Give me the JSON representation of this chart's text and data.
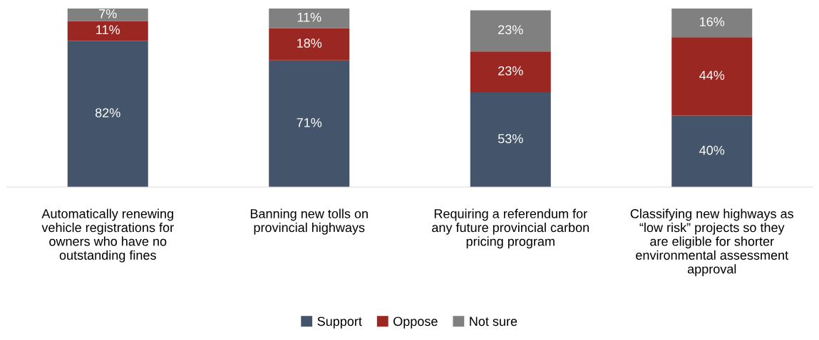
{
  "chart_data": {
    "type": "bar",
    "stacked": true,
    "categories": [
      "Automatically renewing vehicle registrations for owners who have no outstanding fines",
      "Banning new tolls on provincial highways",
      "Requiring a referendum for any future provincial carbon pricing program",
      "Classifying new highways as “low risk” projects so they are eligible for shorter environmental assessment approval"
    ],
    "series": [
      {
        "name": "Support",
        "color": "#44546a",
        "values": [
          82,
          71,
          53,
          40
        ],
        "value_labels": [
          "82%",
          "71%",
          "53%",
          "40%"
        ]
      },
      {
        "name": "Oppose",
        "color": "#9b2722",
        "values": [
          11,
          18,
          23,
          44
        ],
        "value_labels": [
          "11%",
          "18%",
          "23%",
          "44%"
        ]
      },
      {
        "name": "Not sure",
        "color": "#808080",
        "values": [
          7,
          11,
          23,
          16
        ],
        "value_labels": [
          "7%",
          "11%",
          "23%",
          "16%"
        ]
      }
    ],
    "tick_labels": "x",
    "legend": "bottom"
  }
}
